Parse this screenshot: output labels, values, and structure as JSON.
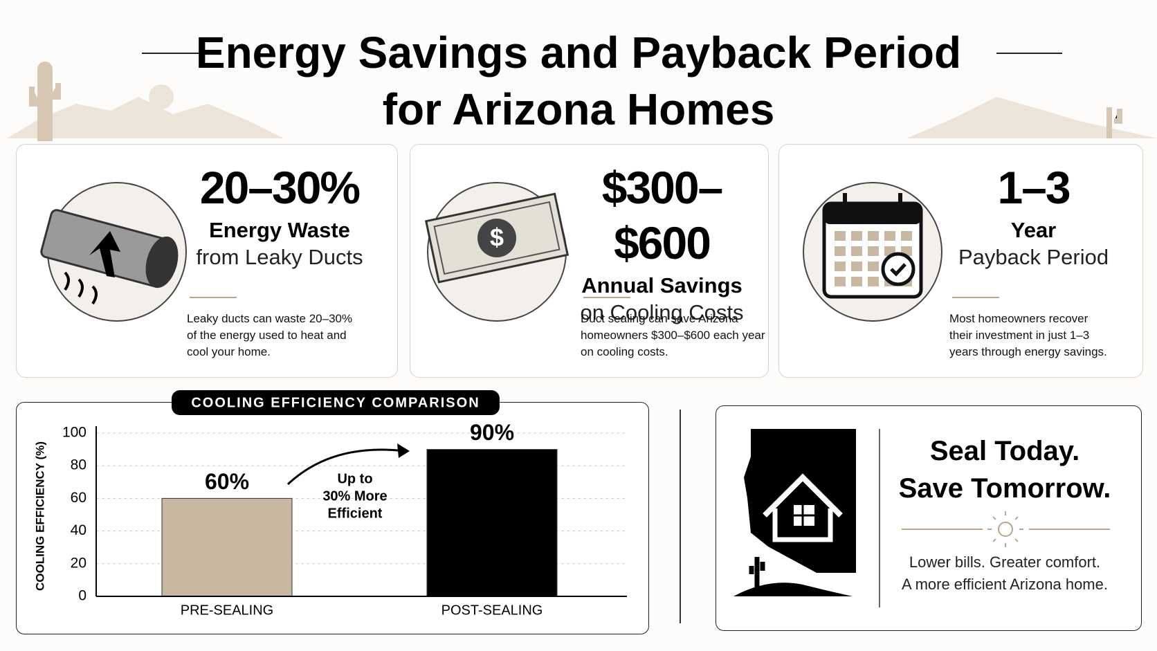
{
  "header": {
    "title_lines": [
      "Energy Savings and Payback Period",
      "for Arizona Homes"
    ]
  },
  "cards": [
    {
      "stat": "20–30%",
      "label_bold": "Energy Waste",
      "label_light": "from Leaky Ducts",
      "body": [
        "Leaky ducts can waste 20–30%",
        "of the energy used to heat and",
        "cool your home."
      ]
    },
    {
      "stat": "$300–$600",
      "label_bold": "Annual Savings",
      "label_light": "on Cooling Costs",
      "body": [
        "Duct sealing can save Arizona",
        "homeowners $300–$600 each year",
        "on cooling costs."
      ]
    },
    {
      "stat": "1–3",
      "label_bold": "Year",
      "label_light": "Payback Period",
      "body": [
        "Most homeowners recover",
        "their investment in just 1–3",
        "years through energy savings."
      ]
    }
  ],
  "chart_data": {
    "type": "bar",
    "title": "COOLING EFFICIENCY COMPARISON",
    "y_label": "COOLING EFFICIENCY (%)",
    "categories": [
      "PRE-SEALING",
      "POST-SEALING"
    ],
    "values": [
      60,
      90
    ],
    "value_labels": [
      "60%",
      "90%"
    ],
    "colors": [
      "#c8b8a2",
      "#000000"
    ],
    "ylim": [
      0,
      100
    ],
    "yticks": [
      0,
      20,
      40,
      60,
      80,
      100
    ],
    "grid": true,
    "annotation": [
      "Up to",
      "30% More",
      "Efficient"
    ]
  },
  "cta": {
    "headline": [
      "Seal Today.",
      "Save Tomorrow."
    ],
    "body": [
      "Lower bills. Greater comfort.",
      "A more efficient Arizona home."
    ]
  }
}
